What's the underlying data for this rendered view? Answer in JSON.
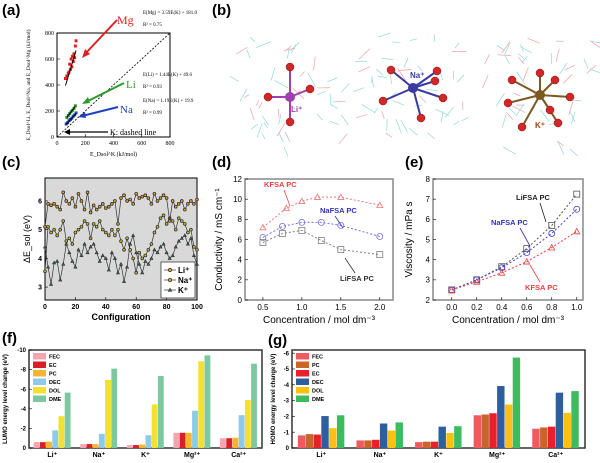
{
  "panels": {
    "a": "(a)",
    "b": "(b)",
    "c": "(c)",
    "d": "(d)",
    "e": "(e)",
    "f": "(f)",
    "g": "(g)"
  },
  "panel_a_annotations": {
    "mg_label": "Mg",
    "mg_eq": "E(Mg) = 3.59E(K) + 181.0",
    "mg_r2": "R² = 0.75",
    "li_label": "Li",
    "li_eq": "E(Li) = 1.44E(K) + 49.6",
    "li_r2": "R² = 0.93",
    "na_label": "Na",
    "na_eq": "E(Na) = 1.19E(K) + 19.9",
    "na_r2": "R² = 0.99",
    "k_label": "K: dashed line"
  },
  "panel_b": {
    "ions": [
      "Li⁺",
      "Na⁺",
      "K⁺"
    ],
    "ion_colors": [
      "#a040b0",
      "#3a3aa0",
      "#7a5a20"
    ]
  },
  "chart_data": [
    {
      "id": "a",
      "type": "scatter",
      "xlabel": "E_Dsol^K (kJ/mol)",
      "ylabel": "E_Dsol^Li, E_Dsol^Na, and E_Dsol^Mg (kJ/mol)",
      "xlim": [
        0,
        800
      ],
      "ylim": [
        0,
        800
      ],
      "xticks": [
        0,
        200,
        400,
        600,
        800
      ],
      "yticks": [
        0,
        200,
        400,
        600,
        800
      ],
      "series": [
        {
          "name": "Mg",
          "color": "#e02020",
          "fit": [
            3.59,
            181.0
          ],
          "x": [
            60,
            70,
            80,
            85,
            90,
            95,
            100,
            105,
            110,
            115,
            120,
            125,
            130,
            135
          ],
          "y": [
            450,
            470,
            490,
            500,
            560,
            520,
            600,
            540,
            620,
            580,
            640,
            610,
            700,
            740
          ]
        },
        {
          "name": "Li",
          "color": "#2a9a2a",
          "fit": [
            1.44,
            49.6
          ],
          "x": [
            70,
            80,
            90,
            100,
            110,
            120,
            130
          ],
          "y": [
            150,
            165,
            180,
            195,
            205,
            220,
            240
          ]
        },
        {
          "name": "Na",
          "color": "#2040c0",
          "fit": [
            1.19,
            19.9
          ],
          "x": [
            65,
            75,
            85,
            95,
            105,
            115,
            125,
            135
          ],
          "y": [
            100,
            110,
            125,
            135,
            145,
            160,
            170,
            185
          ]
        },
        {
          "name": "K",
          "color": "#000000",
          "identity": true
        }
      ]
    },
    {
      "id": "c",
      "type": "line",
      "xlabel": "Configuration",
      "ylabel": "ΔE_sol (eV)",
      "xlim": [
        0,
        100
      ],
      "ylim": [
        2.55,
        6.8
      ],
      "xticks": [
        0,
        20,
        40,
        60,
        80,
        100
      ],
      "yticks": [
        3,
        4,
        5,
        6
      ],
      "legend": "bottom-right",
      "x": [
        0,
        2,
        4,
        6,
        8,
        10,
        12,
        14,
        16,
        18,
        20,
        22,
        24,
        26,
        28,
        30,
        32,
        34,
        36,
        38,
        40,
        42,
        44,
        46,
        48,
        50,
        52,
        54,
        56,
        58,
        60,
        62,
        64,
        66,
        68,
        70,
        72,
        74,
        76,
        78,
        80,
        82,
        84,
        86,
        88,
        90,
        92,
        94,
        96,
        98,
        100
      ],
      "series": [
        {
          "name": "Li⁺",
          "color": "#e8a020",
          "marker": "circle",
          "values": [
            5.1,
            5.9,
            5.85,
            5.9,
            5.8,
            5.7,
            6.3,
            6.0,
            5.9,
            6.1,
            5.8,
            6.25,
            6.0,
            5.7,
            6.3,
            5.6,
            5.85,
            5.7,
            5.8,
            5.9,
            5.75,
            5.8,
            5.9,
            6.0,
            5.2,
            6.1,
            6.2,
            6.0,
            6.05,
            5.9,
            6.25,
            6.1,
            6.15,
            6.2,
            6.1,
            5.9,
            6.25,
            6.0,
            6.1,
            6.2,
            6.1,
            5.3,
            6.0,
            5.8,
            5.9,
            6.0,
            5.7,
            5.9,
            6.0,
            5.9,
            6.05
          ]
        },
        {
          "name": "Na⁺",
          "color": "#c8c020",
          "marker": "circle",
          "values": [
            3.55,
            5.1,
            4.9,
            5.0,
            4.8,
            5.0,
            5.3,
            4.6,
            4.7,
            4.5,
            4.9,
            5.0,
            5.1,
            5.3,
            5.2,
            4.7,
            5.2,
            5.1,
            5.3,
            5.0,
            4.9,
            4.8,
            5.0,
            4.8,
            5.0,
            4.6,
            4.3,
            4.7,
            4.3,
            4.0,
            3.5,
            4.2,
            4.0,
            4.1,
            4.3,
            4.5,
            4.9,
            5.1,
            5.4,
            5.5,
            5.2,
            5.4,
            5.3,
            5.0,
            5.4,
            5.3,
            5.2,
            4.9,
            5.0,
            4.4,
            4.3
          ]
        },
        {
          "name": "K⁺",
          "color": "#3a8a8a",
          "marker": "triangle",
          "values": [
            4.4,
            3.7,
            3.1,
            3.85,
            3.9,
            3.25,
            3.8,
            4.5,
            4.2,
            3.9,
            3.7,
            4.3,
            4.1,
            4.5,
            4.2,
            4.4,
            4.5,
            4.2,
            3.9,
            4.1,
            4.0,
            3.6,
            4.2,
            4.0,
            3.5,
            3.8,
            3.2,
            3.7,
            4.5,
            4.8,
            4.2,
            3.8,
            3.5,
            3.9,
            3.8,
            4.0,
            4.3,
            4.2,
            4.4,
            4.5,
            4.2,
            4.0,
            4.1,
            4.4,
            4.6,
            4.7,
            4.8,
            4.5,
            4.7,
            4.1,
            3.8
          ]
        }
      ]
    },
    {
      "id": "d",
      "type": "line",
      "xlabel": "Concentration / mol dm⁻³",
      "ylabel": "Conductivity / mS cm⁻¹",
      "xlim": [
        0.27,
        2.17
      ],
      "ylim": [
        0,
        12
      ],
      "xticks": [
        0.5,
        1.0,
        1.5,
        2.0
      ],
      "xtick_labels": [
        "0.5",
        "1.0",
        "1.5",
        "2.0"
      ],
      "yticks": [
        0,
        2,
        4,
        6,
        8,
        10,
        12
      ],
      "series": [
        {
          "name": "KFSA PC",
          "color": "#f07878",
          "marker": "triangle",
          "x": [
            0.5,
            0.8,
            1.0,
            1.2,
            1.5,
            2.0
          ],
          "y": [
            7.2,
            9.1,
            9.8,
            10.2,
            10.2,
            9.4
          ]
        },
        {
          "name": "NaFSA PC",
          "color": "#7070e0",
          "marker": "circle",
          "x": [
            0.5,
            0.75,
            1.0,
            1.25,
            1.5,
            2.0
          ],
          "y": [
            6.2,
            7.3,
            7.7,
            7.7,
            7.4,
            6.3
          ]
        },
        {
          "name": "LiFSA PC",
          "color": "#808080",
          "marker": "square",
          "x": [
            0.5,
            0.75,
            1.0,
            1.25,
            1.5,
            2.0
          ],
          "y": [
            5.7,
            6.6,
            6.9,
            5.9,
            5.0,
            4.5
          ]
        }
      ]
    },
    {
      "id": "e",
      "type": "line",
      "xlabel": "Concentration / mol dm⁻³",
      "ylabel": "Viscosity / mPa s",
      "xlim": [
        -0.15,
        1.05
      ],
      "ylim": [
        2,
        8
      ],
      "xticks": [
        0,
        0.2,
        0.4,
        0.6,
        0.8,
        1.0
      ],
      "xtick_labels": [
        "0.0",
        "0.2",
        "0.4",
        "0.6",
        "0.8",
        "1.0"
      ],
      "yticks": [
        2,
        3,
        4,
        5,
        6,
        7,
        8
      ],
      "series": [
        {
          "name": "LiFSA PC",
          "color": "#555555",
          "marker": "square",
          "x": [
            0,
            0.2,
            0.4,
            0.6,
            0.8,
            1.0
          ],
          "y": [
            2.5,
            3.0,
            3.65,
            4.55,
            5.7,
            7.25
          ]
        },
        {
          "name": "NaFSA PC",
          "color": "#4040d0",
          "marker": "circle",
          "x": [
            0,
            0.2,
            0.4,
            0.6,
            0.8,
            1.0
          ],
          "y": [
            2.5,
            3.0,
            3.6,
            4.35,
            5.3,
            6.5
          ]
        },
        {
          "name": "KFSA PC",
          "color": "#e84040",
          "marker": "triangle",
          "x": [
            0,
            0.2,
            0.4,
            0.6,
            0.8,
            1.0
          ],
          "y": [
            2.5,
            2.9,
            3.35,
            3.9,
            4.6,
            5.4
          ]
        }
      ]
    },
    {
      "id": "f",
      "type": "bar",
      "ylabel": "LUMO energy level change (eV)",
      "categories": [
        "Li⁺",
        "Na⁺",
        "K⁺",
        "Mg²⁺",
        "Ca²⁺"
      ],
      "ylim": [
        0,
        -10
      ],
      "yticks": [
        0,
        -2,
        -4,
        -6,
        -8,
        -10
      ],
      "legend": "top-left",
      "series": [
        {
          "name": "FEC",
          "color": "#f4a6b0",
          "values": [
            -0.6,
            -0.4,
            -0.3,
            -1.55,
            -1.0
          ]
        },
        {
          "name": "EC",
          "color": "#d9202a",
          "values": [
            -0.6,
            -0.4,
            -0.3,
            -1.55,
            -1.0
          ]
        },
        {
          "name": "PC",
          "color": "#f5b52e",
          "values": [
            -0.65,
            -0.4,
            -0.35,
            -1.55,
            -1.05
          ]
        },
        {
          "name": "DEC",
          "color": "#8ec8ea",
          "values": [
            -1.8,
            -1.45,
            -1.3,
            -3.8,
            -3.35
          ]
        },
        {
          "name": "DOL",
          "color": "#f2e12e",
          "values": [
            -3.25,
            -6.95,
            -4.45,
            -8.85,
            -4.9
          ]
        },
        {
          "name": "DME",
          "color": "#7dc8a0",
          "values": [
            -5.65,
            -8.1,
            -7.35,
            -9.45,
            -8.6
          ]
        }
      ]
    },
    {
      "id": "g",
      "type": "bar",
      "ylabel": "HOMO energy level change (eV)",
      "categories": [
        "Li⁺",
        "Na⁺",
        "K⁺",
        "Mg²⁺",
        "Ca²⁺"
      ],
      "ylim": [
        0,
        -6.2
      ],
      "yticks": [
        0,
        -1,
        -2,
        -3,
        -4,
        -5,
        -6
      ],
      "legend": "top-left",
      "series": [
        {
          "name": "FEC",
          "color": "#ef5a5e",
          "values": [
            -0.8,
            -0.48,
            -0.37,
            -2.07,
            -1.22
          ]
        },
        {
          "name": "PC",
          "color": "#c8642c",
          "values": [
            -0.88,
            -0.48,
            -0.4,
            -2.12,
            -1.3
          ]
        },
        {
          "name": "EC",
          "color": "#e8202a",
          "values": [
            -0.85,
            -0.52,
            -0.4,
            -2.2,
            -1.35
          ]
        },
        {
          "name": "DEC",
          "color": "#2d5fa0",
          "values": [
            -2.02,
            -1.55,
            -1.35,
            -3.92,
            -3.5
          ]
        },
        {
          "name": "DOL",
          "color": "#fcc010",
          "values": [
            -1.25,
            -1.1,
            -0.95,
            -2.75,
            -2.22
          ]
        },
        {
          "name": "DME",
          "color": "#3dbb5e",
          "values": [
            -2.07,
            -1.62,
            -1.38,
            -5.72,
            -3.6
          ]
        }
      ]
    }
  ]
}
